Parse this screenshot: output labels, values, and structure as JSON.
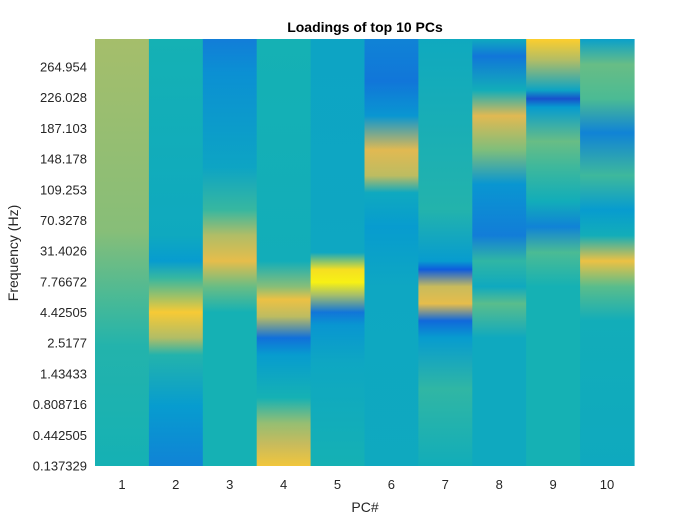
{
  "chart_data": {
    "type": "heatmap",
    "title": "Loadings of top 10 PCs",
    "xlabel": "PC#",
    "ylabel": "Frequency (Hz)",
    "x_categories": [
      "1",
      "2",
      "3",
      "4",
      "5",
      "6",
      "7",
      "8",
      "9",
      "10"
    ],
    "y_tick_labels": [
      "264.954",
      "226.028",
      "187.103",
      "148.178",
      "109.253",
      "70.3278",
      "31.4026",
      "7.76672",
      "4.42505",
      "2.5177",
      "1.43433",
      "0.808716",
      "0.442505",
      "0.137329"
    ],
    "colormap": "parula",
    "colors": {
      "low": "#3a34d9",
      "mid": "#1ba4d4",
      "high": "#f9fb0e"
    },
    "columns": [
      {
        "pc": "1",
        "stops": [
          [
            0.0,
            0.6
          ],
          [
            0.45,
            0.56
          ],
          [
            0.62,
            0.47
          ],
          [
            0.72,
            0.42
          ],
          [
            1.0,
            0.4
          ]
        ]
      },
      {
        "pc": "2",
        "stops": [
          [
            0.0,
            0.4
          ],
          [
            0.46,
            0.36
          ],
          [
            0.52,
            0.3
          ],
          [
            0.56,
            0.45
          ],
          [
            0.64,
            0.78
          ],
          [
            0.7,
            0.62
          ],
          [
            0.74,
            0.42
          ],
          [
            0.86,
            0.3
          ],
          [
            1.0,
            0.22
          ]
        ]
      },
      {
        "pc": "3",
        "stops": [
          [
            0.0,
            0.2
          ],
          [
            0.08,
            0.26
          ],
          [
            0.3,
            0.34
          ],
          [
            0.4,
            0.45
          ],
          [
            0.46,
            0.62
          ],
          [
            0.52,
            0.72
          ],
          [
            0.58,
            0.52
          ],
          [
            0.64,
            0.4
          ],
          [
            1.0,
            0.4
          ]
        ]
      },
      {
        "pc": "4",
        "stops": [
          [
            0.0,
            0.4
          ],
          [
            0.52,
            0.38
          ],
          [
            0.58,
            0.56
          ],
          [
            0.61,
            0.74
          ],
          [
            0.65,
            0.64
          ],
          [
            0.7,
            0.16
          ],
          [
            0.74,
            0.3
          ],
          [
            0.84,
            0.4
          ],
          [
            0.9,
            0.58
          ],
          [
            0.95,
            0.66
          ],
          [
            1.0,
            0.76
          ]
        ]
      },
      {
        "pc": "5",
        "stops": [
          [
            0.0,
            0.34
          ],
          [
            0.5,
            0.35
          ],
          [
            0.54,
            0.88
          ],
          [
            0.57,
            0.96
          ],
          [
            0.6,
            0.6
          ],
          [
            0.64,
            0.18
          ],
          [
            0.67,
            0.28
          ],
          [
            0.76,
            0.35
          ],
          [
            1.0,
            0.4
          ]
        ]
      },
      {
        "pc": "6",
        "stops": [
          [
            0.0,
            0.22
          ],
          [
            0.1,
            0.18
          ],
          [
            0.18,
            0.28
          ],
          [
            0.26,
            0.7
          ],
          [
            0.32,
            0.64
          ],
          [
            0.36,
            0.36
          ],
          [
            0.44,
            0.3
          ],
          [
            0.58,
            0.35
          ],
          [
            1.0,
            0.36
          ]
        ]
      },
      {
        "pc": "7",
        "stops": [
          [
            0.0,
            0.36
          ],
          [
            0.4,
            0.42
          ],
          [
            0.52,
            0.3
          ],
          [
            0.54,
            0.1
          ],
          [
            0.58,
            0.66
          ],
          [
            0.62,
            0.72
          ],
          [
            0.66,
            0.14
          ],
          [
            0.7,
            0.3
          ],
          [
            0.82,
            0.44
          ],
          [
            1.0,
            0.38
          ]
        ]
      },
      {
        "pc": "8",
        "stops": [
          [
            0.0,
            0.36
          ],
          [
            0.04,
            0.18
          ],
          [
            0.12,
            0.38
          ],
          [
            0.18,
            0.7
          ],
          [
            0.26,
            0.55
          ],
          [
            0.34,
            0.28
          ],
          [
            0.46,
            0.2
          ],
          [
            0.52,
            0.44
          ],
          [
            0.58,
            0.36
          ],
          [
            0.62,
            0.5
          ],
          [
            0.7,
            0.36
          ],
          [
            1.0,
            0.36
          ]
        ]
      },
      {
        "pc": "9",
        "stops": [
          [
            0.0,
            0.8
          ],
          [
            0.05,
            0.62
          ],
          [
            0.12,
            0.34
          ],
          [
            0.14,
            0.08
          ],
          [
            0.16,
            0.3
          ],
          [
            0.24,
            0.52
          ],
          [
            0.3,
            0.46
          ],
          [
            0.38,
            0.38
          ],
          [
            0.44,
            0.22
          ],
          [
            0.5,
            0.48
          ],
          [
            0.58,
            0.4
          ],
          [
            1.0,
            0.4
          ]
        ]
      },
      {
        "pc": "10",
        "stops": [
          [
            0.0,
            0.32
          ],
          [
            0.06,
            0.52
          ],
          [
            0.14,
            0.48
          ],
          [
            0.22,
            0.22
          ],
          [
            0.32,
            0.46
          ],
          [
            0.4,
            0.3
          ],
          [
            0.46,
            0.38
          ],
          [
            0.52,
            0.74
          ],
          [
            0.58,
            0.5
          ],
          [
            0.66,
            0.38
          ],
          [
            1.0,
            0.36
          ]
        ]
      }
    ]
  }
}
